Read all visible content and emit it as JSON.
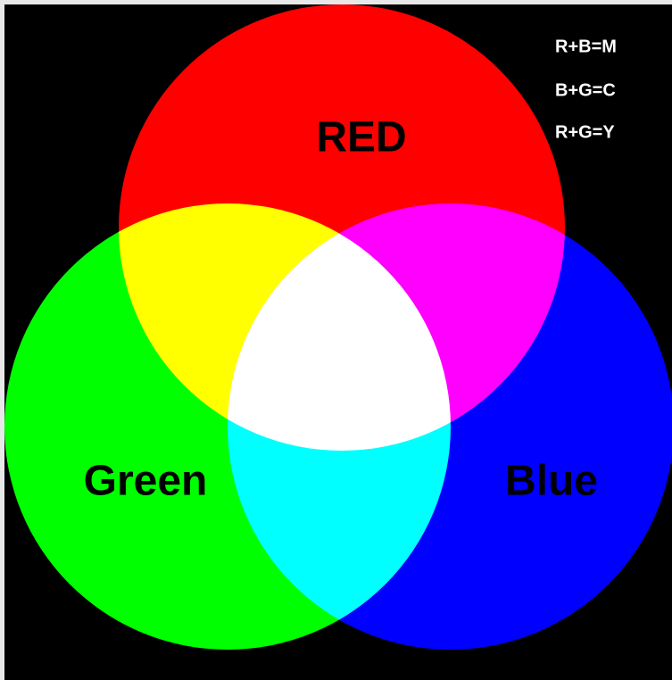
{
  "labels": {
    "red": "RED",
    "green": "Green",
    "blue": "Blue"
  },
  "legend": [
    "R+B=M",
    "B+G=C",
    "R+G=Y"
  ]
}
